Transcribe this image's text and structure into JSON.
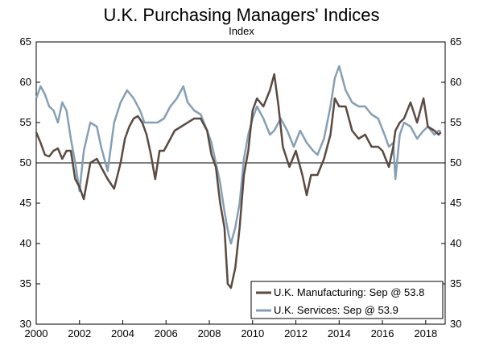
{
  "chart_data": {
    "type": "line",
    "title": "U.K. Purchasing Managers' Indices",
    "subtitle": "Index",
    "xlabel": "",
    "ylabel": "",
    "xlim": [
      2000,
      2018.9
    ],
    "ylim": [
      30,
      65
    ],
    "x_ticks": [
      2000,
      2002,
      2004,
      2006,
      2008,
      2010,
      2012,
      2014,
      2016,
      2018
    ],
    "x_tick_labels": [
      "2000",
      "2002",
      "2004",
      "2006",
      "2008",
      "2010",
      "2012",
      "2014",
      "2016",
      "2018"
    ],
    "y_ticks": [
      30,
      35,
      40,
      45,
      50,
      55,
      60,
      65
    ],
    "y_tick_labels": [
      "30",
      "35",
      "40",
      "45",
      "50",
      "55",
      "60",
      "65"
    ],
    "reference_line": 50,
    "legend_position": "bottom-right",
    "series": [
      {
        "name": "U.K. Manufacturing: Sep @ 53.8",
        "color": "#5a4a42",
        "x": [
          2000.0,
          2000.2,
          2000.4,
          2000.6,
          2000.8,
          2001.0,
          2001.2,
          2001.4,
          2001.6,
          2001.8,
          2002.0,
          2002.2,
          2002.5,
          2002.8,
          2003.0,
          2003.3,
          2003.6,
          2003.9,
          2004.1,
          2004.3,
          2004.5,
          2004.7,
          2004.9,
          2005.1,
          2005.3,
          2005.5,
          2005.7,
          2005.9,
          2006.1,
          2006.4,
          2006.7,
          2007.0,
          2007.3,
          2007.6,
          2007.9,
          2008.1,
          2008.3,
          2008.5,
          2008.7,
          2008.85,
          2009.0,
          2009.2,
          2009.4,
          2009.6,
          2009.8,
          2010.0,
          2010.2,
          2010.5,
          2010.8,
          2011.0,
          2011.2,
          2011.4,
          2011.7,
          2012.0,
          2012.3,
          2012.5,
          2012.7,
          2013.0,
          2013.3,
          2013.6,
          2013.8,
          2014.0,
          2014.3,
          2014.6,
          2014.9,
          2015.2,
          2015.5,
          2015.8,
          2016.0,
          2016.3,
          2016.5,
          2016.6,
          2016.8,
          2017.0,
          2017.3,
          2017.6,
          2017.9,
          2018.1,
          2018.4,
          2018.6,
          2018.7
        ],
        "values": [
          53.8,
          52.5,
          51.0,
          50.8,
          51.5,
          51.8,
          50.5,
          51.5,
          51.5,
          48.0,
          47.0,
          45.5,
          50.0,
          50.5,
          49.5,
          48.0,
          46.8,
          50.0,
          53.0,
          54.5,
          55.5,
          55.8,
          55.0,
          53.5,
          51.0,
          48.0,
          51.5,
          51.5,
          52.5,
          54.0,
          54.5,
          55.0,
          55.5,
          55.5,
          54.0,
          51.0,
          49.5,
          45.0,
          42.0,
          35.0,
          34.5,
          37.0,
          42.0,
          48.5,
          51.5,
          56.5,
          58.0,
          57.0,
          59.0,
          61.0,
          57.0,
          52.0,
          49.5,
          51.5,
          48.5,
          46.0,
          48.5,
          48.5,
          50.5,
          53.5,
          58.0,
          57.0,
          57.0,
          54.0,
          53.0,
          53.5,
          52.0,
          52.0,
          51.5,
          49.5,
          52.0,
          54.0,
          55.0,
          55.5,
          57.5,
          55.0,
          58.0,
          54.5,
          54.0,
          53.5,
          53.8
        ]
      },
      {
        "name": "U.K. Services: Sep @ 53.9",
        "color": "#869fb4",
        "x": [
          2000.0,
          2000.2,
          2000.4,
          2000.6,
          2000.8,
          2001.0,
          2001.2,
          2001.4,
          2001.6,
          2001.8,
          2002.0,
          2002.2,
          2002.5,
          2002.8,
          2003.0,
          2003.3,
          2003.6,
          2003.9,
          2004.2,
          2004.5,
          2004.8,
          2005.0,
          2005.3,
          2005.6,
          2005.9,
          2006.2,
          2006.5,
          2006.8,
          2007.0,
          2007.3,
          2007.6,
          2007.9,
          2008.1,
          2008.3,
          2008.5,
          2008.7,
          2008.9,
          2009.0,
          2009.2,
          2009.4,
          2009.6,
          2009.8,
          2010.0,
          2010.2,
          2010.5,
          2010.8,
          2011.0,
          2011.3,
          2011.6,
          2011.9,
          2012.2,
          2012.5,
          2012.8,
          2013.0,
          2013.3,
          2013.6,
          2013.8,
          2014.0,
          2014.3,
          2014.6,
          2014.9,
          2015.2,
          2015.5,
          2015.8,
          2016.1,
          2016.3,
          2016.5,
          2016.6,
          2016.8,
          2017.0,
          2017.3,
          2017.6,
          2017.9,
          2018.1,
          2018.4,
          2018.6,
          2018.7
        ],
        "values": [
          58.0,
          59.5,
          58.5,
          57.0,
          56.5,
          55.0,
          57.5,
          56.5,
          53.0,
          50.0,
          46.5,
          51.5,
          55.0,
          54.5,
          52.0,
          49.0,
          55.0,
          57.5,
          59.0,
          58.0,
          56.5,
          55.0,
          55.0,
          55.0,
          55.5,
          57.0,
          58.0,
          59.5,
          57.5,
          56.5,
          56.0,
          54.0,
          52.5,
          50.0,
          47.5,
          44.0,
          41.0,
          40.0,
          42.0,
          45.0,
          50.5,
          53.5,
          55.5,
          57.0,
          55.5,
          53.5,
          54.0,
          55.5,
          54.0,
          52.0,
          54.0,
          52.5,
          51.5,
          51.0,
          53.0,
          57.0,
          60.5,
          62.0,
          59.0,
          57.5,
          57.0,
          57.0,
          56.0,
          55.5,
          53.5,
          52.0,
          52.5,
          48.0,
          53.5,
          55.0,
          54.5,
          53.0,
          54.0,
          54.5,
          53.5,
          54.0,
          53.9
        ]
      }
    ]
  }
}
